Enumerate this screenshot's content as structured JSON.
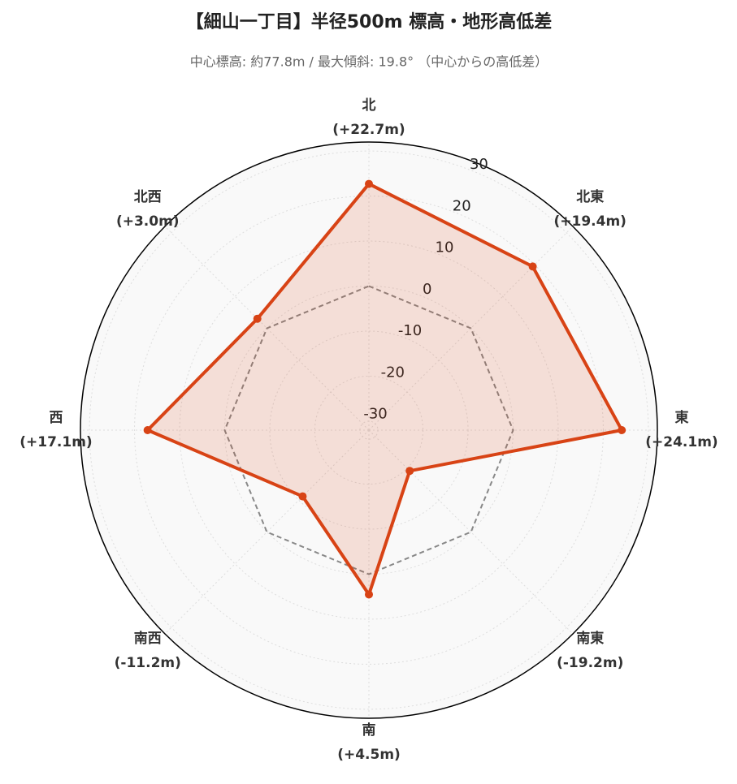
{
  "chart_data": {
    "type": "radar",
    "title": "【細山一丁目】半径500m 標高・地形高低差",
    "subtitle": "中心標高: 約77.8m / 最大傾斜: 19.8° （中心からの高低差）",
    "categories": [
      "北",
      "北東",
      "東",
      "南東",
      "南",
      "南西",
      "西",
      "北西"
    ],
    "values": [
      22.7,
      19.4,
      24.1,
      -19.2,
      4.5,
      -11.2,
      17.1,
      3.0
    ],
    "value_labels": [
      "(+22.7m)",
      "(+19.4m)",
      "(+24.1m)",
      "(-19.2m)",
      "(+4.5m)",
      "(-11.2m)",
      "(+17.1m)",
      "(+3.0m)"
    ],
    "color": "#d84315",
    "reference_value": 0,
    "ylim": [
      -32,
      32
    ],
    "yticks": [
      -30,
      -20,
      -10,
      0,
      10,
      20,
      30
    ],
    "grid": true
  }
}
